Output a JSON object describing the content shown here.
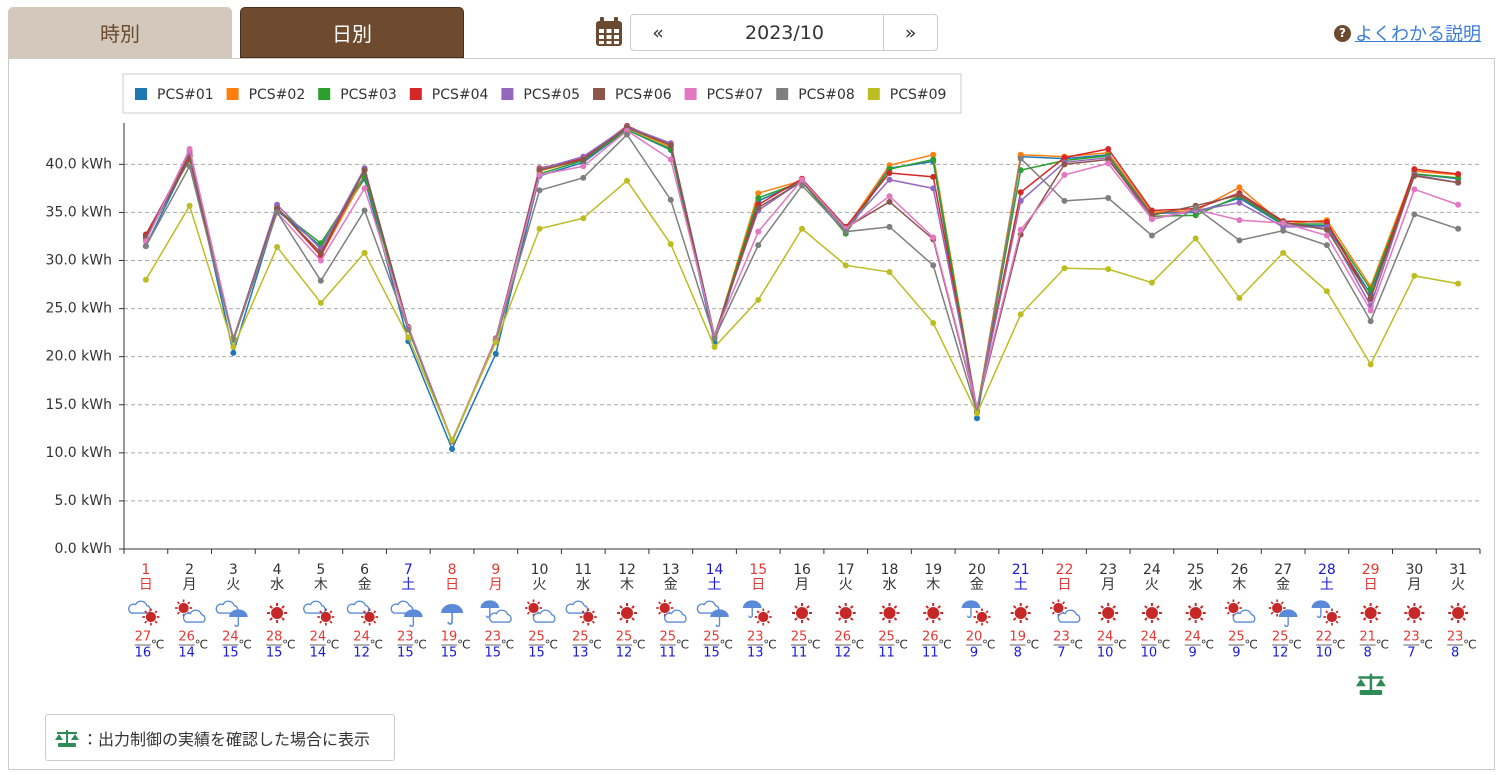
{
  "tabs": [
    "時別",
    "日別"
  ],
  "nav": {
    "prev": "«",
    "date": "2023/10",
    "next": "»"
  },
  "help": {
    "icon": "?",
    "label": "よくわかる説明"
  },
  "note": "：出力制御の実績を確認した場合に表示",
  "chart_data": {
    "type": "line",
    "categories": [
      "1",
      "2",
      "3",
      "4",
      "5",
      "6",
      "7",
      "8",
      "9",
      "10",
      "11",
      "12",
      "13",
      "14",
      "15",
      "16",
      "17",
      "18",
      "19",
      "20",
      "21",
      "22",
      "23",
      "24",
      "25",
      "26",
      "27",
      "28",
      "29",
      "30",
      "31"
    ],
    "weekdays": [
      "日",
      "月",
      "火",
      "水",
      "木",
      "金",
      "土",
      "日",
      "月",
      "火",
      "水",
      "木",
      "金",
      "土",
      "日",
      "月",
      "火",
      "水",
      "木",
      "金",
      "土",
      "日",
      "月",
      "火",
      "水",
      "木",
      "金",
      "土",
      "日",
      "月",
      "火"
    ],
    "day_colors": [
      "#e53935",
      "#333333",
      "#333333",
      "#333333",
      "#333333",
      "#333333",
      "#1a1ad6",
      "#e53935",
      "#e53935",
      "#333333",
      "#333333",
      "#333333",
      "#333333",
      "#1a1ad6",
      "#e53935",
      "#333333",
      "#333333",
      "#333333",
      "#333333",
      "#333333",
      "#1a1ad6",
      "#e53935",
      "#333333",
      "#333333",
      "#333333",
      "#333333",
      "#333333",
      "#1a1ad6",
      "#e53935",
      "#333333",
      "#333333"
    ],
    "temp_high": [
      27,
      26,
      24,
      28,
      24,
      24,
      23,
      19,
      23,
      25,
      25,
      25,
      25,
      25,
      23,
      25,
      26,
      25,
      26,
      20,
      19,
      23,
      24,
      24,
      24,
      25,
      25,
      22,
      21,
      23,
      23
    ],
    "temp_low": [
      16,
      14,
      15,
      15,
      14,
      12,
      15,
      15,
      15,
      15,
      13,
      12,
      11,
      15,
      13,
      11,
      12,
      11,
      11,
      9,
      8,
      7,
      10,
      10,
      9,
      9,
      12,
      10,
      8,
      7,
      8
    ],
    "temp_unit": "℃",
    "temp_high_color": "#e53935",
    "temp_low_color": "#1a1ad6",
    "output_control": [
      false,
      false,
      false,
      false,
      false,
      false,
      false,
      false,
      false,
      false,
      false,
      false,
      false,
      false,
      false,
      false,
      false,
      false,
      false,
      false,
      false,
      false,
      false,
      false,
      false,
      false,
      false,
      false,
      true,
      false,
      false
    ],
    "ylim": [
      0,
      44.3
    ],
    "yticks": [
      {
        "value": 0,
        "label": "0.0 kWh"
      },
      {
        "value": 5,
        "label": "5.0 kWh"
      },
      {
        "value": 10,
        "label": "10.0 kWh"
      },
      {
        "value": 15,
        "label": "15.0 kWh"
      },
      {
        "value": 20,
        "label": "20.0 kWh"
      },
      {
        "value": 25,
        "label": "25.0 kWh"
      },
      {
        "value": 30,
        "label": "30.0 kWh"
      },
      {
        "value": 35,
        "label": "35.0 kWh"
      },
      {
        "value": 40,
        "label": "40.0 kWh"
      }
    ],
    "grid": true,
    "legend": "top-left",
    "series": [
      {
        "name": "PCS#01",
        "color": "#1f77b4",
        "values": [
          31.5,
          40.8,
          20.4,
          35.2,
          31.5,
          38.5,
          21.6,
          10.4,
          20.3,
          38.8,
          40.2,
          43.6,
          41.5,
          21.5,
          36.2,
          38.2,
          33.2,
          39.6,
          40.3,
          13.6,
          40.8,
          40.6,
          41.0,
          34.9,
          35.0,
          36.5,
          33.7,
          33.6,
          26.5,
          39.0,
          38.5
        ]
      },
      {
        "name": "PCS#02",
        "color": "#ff7f0e",
        "values": [
          32.3,
          40.8,
          21.8,
          35.5,
          30.5,
          38.8,
          22.9,
          11.2,
          21.6,
          39.3,
          40.5,
          43.8,
          41.8,
          22.0,
          37.0,
          38.3,
          33.3,
          39.9,
          41.0,
          14.4,
          41.0,
          40.8,
          41.2,
          35.0,
          35.2,
          37.6,
          33.8,
          34.2,
          27.3,
          39.3,
          38.9
        ]
      },
      {
        "name": "PCS#03",
        "color": "#2ca02c",
        "values": [
          32.2,
          40.8,
          21.8,
          35.3,
          31.8,
          38.8,
          22.9,
          11.2,
          21.7,
          39.0,
          40.4,
          43.6,
          41.6,
          22.0,
          36.5,
          38.2,
          32.8,
          39.5,
          40.5,
          14.3,
          39.4,
          40.4,
          40.9,
          34.6,
          34.7,
          36.7,
          33.8,
          33.8,
          27.0,
          39.0,
          38.6
        ]
      },
      {
        "name": "PCS#04",
        "color": "#d62728",
        "values": [
          32.7,
          41.0,
          21.8,
          35.5,
          30.5,
          39.5,
          23.0,
          11.2,
          21.8,
          39.6,
          40.6,
          44.0,
          42.0,
          22.1,
          35.8,
          38.5,
          33.5,
          39.1,
          38.7,
          14.5,
          37.1,
          40.7,
          41.6,
          35.2,
          35.4,
          37.0,
          34.1,
          34.0,
          26.0,
          39.5,
          39.0
        ]
      },
      {
        "name": "PCS#05",
        "color": "#9467bd",
        "values": [
          32.4,
          41.3,
          21.8,
          35.8,
          31.2,
          39.6,
          23.0,
          11.2,
          21.8,
          39.5,
          40.8,
          43.9,
          42.2,
          22.2,
          35.2,
          38.3,
          33.3,
          38.4,
          37.5,
          14.6,
          36.2,
          40.2,
          40.7,
          34.3,
          35.2,
          36.0,
          33.5,
          33.5,
          25.3,
          38.9,
          38.1
        ]
      },
      {
        "name": "PCS#06",
        "color": "#8c564b",
        "values": [
          32.5,
          40.5,
          21.9,
          35.4,
          30.8,
          39.4,
          23.1,
          11.2,
          21.9,
          39.4,
          40.5,
          43.8,
          42.0,
          22.2,
          35.5,
          38.2,
          33.4,
          36.1,
          32.2,
          14.6,
          32.7,
          40.0,
          40.5,
          34.7,
          35.7,
          36.8,
          34.0,
          33.2,
          26.1,
          38.8,
          38.1
        ]
      },
      {
        "name": "PCS#07",
        "color": "#e377c2",
        "values": [
          32.0,
          41.6,
          21.8,
          35.0,
          30.0,
          37.5,
          23.0,
          11.3,
          21.8,
          38.9,
          39.8,
          43.5,
          40.5,
          22.2,
          33.0,
          38.4,
          33.3,
          36.7,
          32.4,
          14.8,
          33.2,
          38.9,
          40.1,
          34.3,
          35.3,
          34.2,
          33.9,
          32.6,
          24.8,
          37.4,
          35.8
        ]
      },
      {
        "name": "PCS#08",
        "color": "#7f7f7f",
        "values": [
          31.5,
          39.8,
          21.7,
          35.0,
          27.9,
          35.2,
          22.8,
          11.2,
          21.6,
          37.3,
          38.6,
          43.1,
          36.3,
          21.9,
          31.6,
          37.8,
          33.0,
          33.5,
          29.5,
          14.2,
          40.6,
          36.2,
          36.5,
          32.6,
          35.5,
          32.1,
          33.1,
          31.6,
          23.7,
          34.8,
          33.3
        ]
      },
      {
        "name": "PCS#09",
        "color": "#bcbd22",
        "values": [
          28.0,
          35.7,
          21.0,
          31.4,
          25.6,
          30.8,
          22.0,
          11.3,
          21.5,
          33.3,
          34.4,
          38.3,
          31.7,
          21.0,
          25.9,
          33.3,
          29.5,
          28.8,
          23.5,
          14.1,
          24.4,
          29.2,
          29.1,
          27.7,
          32.3,
          26.1,
          30.8,
          26.8,
          19.2,
          28.4,
          27.6
        ]
      }
    ]
  }
}
